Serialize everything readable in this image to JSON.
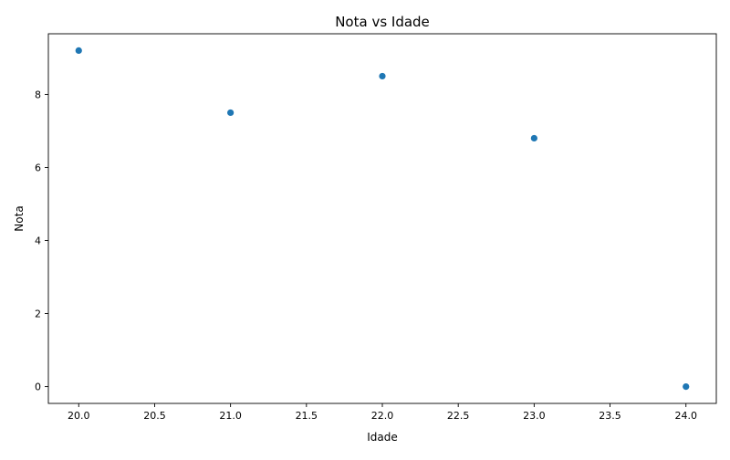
{
  "chart_data": {
    "type": "scatter",
    "title": "Nota vs Idade",
    "xlabel": "Idade",
    "ylabel": "Nota",
    "xlim": [
      19.8,
      24.2
    ],
    "ylim": [
      -0.46,
      9.66
    ],
    "xticks": [
      "20.0",
      "20.5",
      "21.0",
      "21.5",
      "22.0",
      "22.5",
      "23.0",
      "23.5",
      "24.0"
    ],
    "yticks": [
      "0",
      "2",
      "4",
      "6",
      "8"
    ],
    "grid": false,
    "points": [
      {
        "x": 20,
        "y": 9.2
      },
      {
        "x": 21,
        "y": 7.5
      },
      {
        "x": 22,
        "y": 8.5
      },
      {
        "x": 23,
        "y": 6.8
      },
      {
        "x": 24,
        "y": 0.0
      }
    ],
    "point_color": "#1f77b4"
  }
}
